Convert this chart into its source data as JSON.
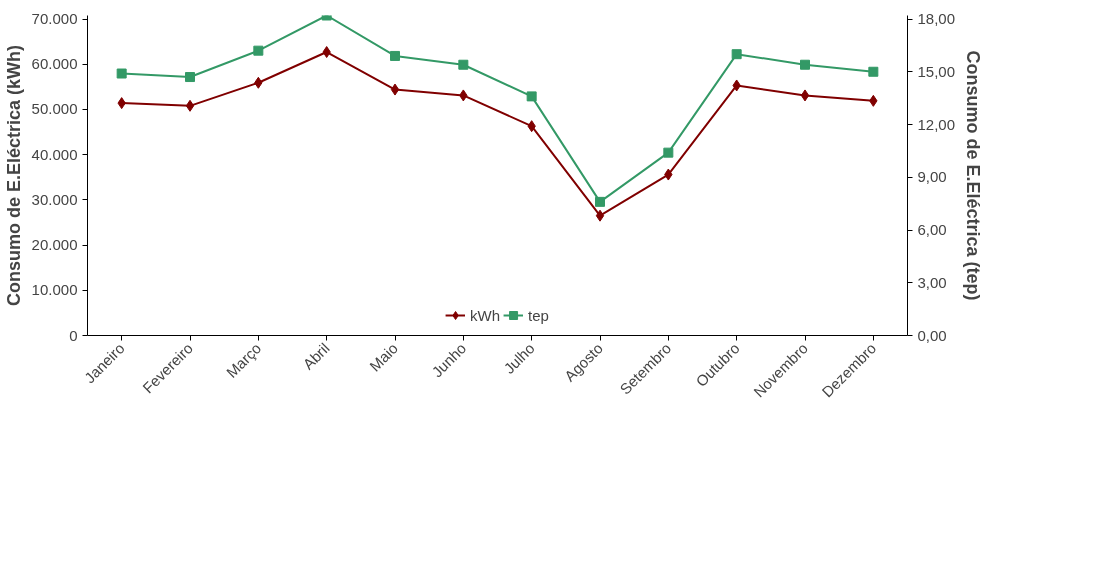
{
  "chart_data": {
    "type": "line",
    "categories": [
      "Janeiro",
      "Fevereiro",
      "Março",
      "Abril",
      "Maio",
      "Junho",
      "Julho",
      "Agosto",
      "Setembro",
      "Outubro",
      "Novembro",
      "Dezembro"
    ],
    "ylabel": "Consumo de E.Eléctrica (kWh)",
    "y2label": "Consumo de E.Eléctrica (tep)",
    "ylim": [
      0,
      70778
    ],
    "yticks": [
      0,
      {
        "value": 10000,
        "label": "10.000"
      },
      {
        "value": 20000,
        "label": "20.000"
      },
      {
        "value": 30000,
        "label": "30.000"
      },
      {
        "value": 40000,
        "label": "40.000"
      },
      {
        "value": 50000,
        "label": "50.000"
      },
      {
        "value": 60000,
        "label": "60.000"
      },
      {
        "value": 70000,
        "label": "70.000"
      }
    ],
    "y2lim": [
      0,
      18.2
    ],
    "y2ticks": [
      {
        "value": 0,
        "label": "0,00"
      },
      {
        "value": 3,
        "label": "3,00"
      },
      {
        "value": 6,
        "label": "6,00"
      },
      {
        "value": 9,
        "label": "9,00"
      },
      {
        "value": 12,
        "label": "12,00"
      },
      {
        "value": 15,
        "label": "15,00"
      },
      {
        "value": 18,
        "label": "18,00"
      }
    ],
    "series": [
      {
        "name": "kWh",
        "color": "#800000",
        "marker": "diamond",
        "values": [
          51400,
          50800,
          55900,
          62700,
          54400,
          53100,
          46300,
          26500,
          35600,
          55300,
          53100,
          51900
        ]
      },
      {
        "name": "tep",
        "color": "#339966",
        "marker": "square",
        "axis": "y2",
        "values": [
          14.9,
          14.7,
          16.2,
          18.2,
          15.9,
          15.4,
          13.6,
          7.6,
          10.4,
          16.0,
          15.4,
          15.0
        ]
      }
    ],
    "grid": false,
    "legend": "bottom"
  }
}
